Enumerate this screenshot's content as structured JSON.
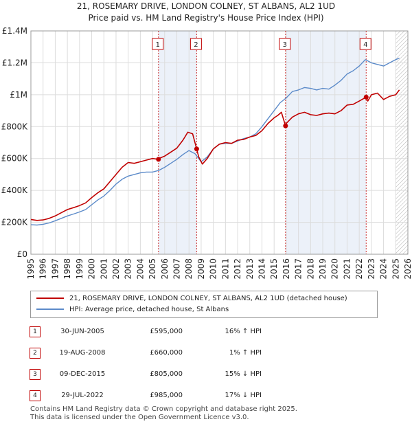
{
  "title_line1": "21, ROSEMARY DRIVE, LONDON COLNEY, ST ALBANS, AL2 1UD",
  "title_line2": "Price paid vs. HM Land Registry's House Price Index (HPI)",
  "colors": {
    "property_line": "#c00000",
    "hpi_line": "#5b8ac9",
    "shade": "#dde6f4",
    "grid": "#dcdcdc"
  },
  "legend": {
    "property_label": "21, ROSEMARY DRIVE, LONDON COLNEY, ST ALBANS, AL2 1UD (detached house)",
    "hpi_label": "HPI: Average price, detached house, St Albans"
  },
  "sales": [
    {
      "num": "1",
      "date": "30-JUN-2005",
      "price": "£595,000",
      "hpi": "16% ↑ HPI"
    },
    {
      "num": "2",
      "date": "19-AUG-2008",
      "price": "£660,000",
      "hpi": "1% ↑ HPI"
    },
    {
      "num": "3",
      "date": "09-DEC-2015",
      "price": "£805,000",
      "hpi": "15% ↓ HPI"
    },
    {
      "num": "4",
      "date": "29-JUL-2022",
      "price": "£985,000",
      "hpi": "17% ↓ HPI"
    }
  ],
  "footer_line1": "Contains HM Land Registry data © Crown copyright and database right 2025.",
  "footer_line2": "This data is licensed under the Open Government Licence v3.0.",
  "chart_data": {
    "type": "line",
    "title": "21, ROSEMARY DRIVE, LONDON COLNEY, ST ALBANS, AL2 1UD",
    "subtitle": "Price paid vs. HM Land Registry's House Price Index (HPI)",
    "xlabel": "",
    "ylabel": "",
    "xlim": [
      1995,
      2026
    ],
    "ylim": [
      0,
      1400000
    ],
    "x_ticks": [
      1995,
      1996,
      1997,
      1998,
      1999,
      2000,
      2001,
      2002,
      2003,
      2004,
      2005,
      2006,
      2007,
      2008,
      2009,
      2010,
      2011,
      2012,
      2013,
      2014,
      2015,
      2016,
      2017,
      2018,
      2019,
      2020,
      2021,
      2022,
      2023,
      2024,
      2025,
      2026
    ],
    "y_ticks": [
      {
        "value": 0,
        "label": "£0"
      },
      {
        "value": 200000,
        "label": "£200K"
      },
      {
        "value": 400000,
        "label": "£400K"
      },
      {
        "value": 600000,
        "label": "£600K"
      },
      {
        "value": 800000,
        "label": "£800K"
      },
      {
        "value": 1000000,
        "label": "£1M"
      },
      {
        "value": 1200000,
        "label": "£1.2M"
      },
      {
        "value": 1400000,
        "label": "£1.4M"
      }
    ],
    "grid": true,
    "forecast_from": 2025.0,
    "series": [
      {
        "name": "21, ROSEMARY DRIVE, LONDON COLNEY, ST ALBANS, AL2 1UD (detached house)",
        "x": [
          1995,
          1995.5,
          1996,
          1996.5,
          1997,
          1997.5,
          1998,
          1998.5,
          1999,
          1999.5,
          2000,
          2000.5,
          2001,
          2001.5,
          2002,
          2002.5,
          2003,
          2003.5,
          2004,
          2004.5,
          2005,
          2005.49,
          2005.5,
          2006,
          2006.5,
          2007,
          2007.5,
          2007.9,
          2008.3,
          2008.63,
          2008.8,
          2009.1,
          2009.5,
          2010,
          2010.5,
          2011,
          2011.5,
          2012,
          2012.5,
          2013,
          2013.5,
          2014,
          2014.5,
          2015,
          2015.3,
          2015.6,
          2015.94,
          2016,
          2016.5,
          2017,
          2017.5,
          2018,
          2018.5,
          2019,
          2019.5,
          2020,
          2020.5,
          2021,
          2021.5,
          2022,
          2022.57,
          2022.7,
          2023,
          2023.5,
          2024,
          2024.5,
          2025,
          2025.3
        ],
        "y": [
          218000,
          212000,
          215000,
          225000,
          240000,
          260000,
          280000,
          292000,
          305000,
          322000,
          355000,
          385000,
          410000,
          455000,
          500000,
          545000,
          575000,
          570000,
          580000,
          590000,
          600000,
          595000,
          600000,
          615000,
          640000,
          665000,
          715000,
          765000,
          755000,
          660000,
          610000,
          565000,
          600000,
          660000,
          690000,
          700000,
          695000,
          715000,
          720000,
          735000,
          745000,
          775000,
          820000,
          855000,
          870000,
          890000,
          805000,
          820000,
          860000,
          880000,
          890000,
          875000,
          870000,
          880000,
          885000,
          880000,
          900000,
          935000,
          940000,
          960000,
          985000,
          960000,
          1000000,
          1010000,
          970000,
          990000,
          1000000,
          1030000
        ]
      },
      {
        "name": "HPI: Average price, detached house, St Albans",
        "x": [
          1995,
          1995.5,
          1996,
          1996.5,
          1997,
          1997.5,
          1998,
          1998.5,
          1999,
          1999.5,
          2000,
          2000.5,
          2001,
          2001.5,
          2002,
          2002.5,
          2003,
          2003.5,
          2004,
          2004.5,
          2005,
          2005.5,
          2006,
          2006.5,
          2007,
          2007.5,
          2008,
          2008.5,
          2009,
          2009.5,
          2010,
          2010.5,
          2011,
          2011.5,
          2012,
          2012.5,
          2013,
          2013.5,
          2014,
          2014.5,
          2015,
          2015.5,
          2016,
          2016.5,
          2017,
          2017.5,
          2018,
          2018.5,
          2019,
          2019.5,
          2020,
          2020.5,
          2021,
          2021.5,
          2022,
          2022.5,
          2023,
          2023.5,
          2024,
          2024.5,
          2025,
          2025.3
        ],
        "y": [
          185000,
          183000,
          188000,
          196000,
          210000,
          225000,
          240000,
          252000,
          265000,
          280000,
          310000,
          340000,
          365000,
          400000,
          440000,
          470000,
          490000,
          500000,
          510000,
          515000,
          515000,
          525000,
          545000,
          570000,
          595000,
          625000,
          650000,
          630000,
          580000,
          610000,
          660000,
          690000,
          695000,
          695000,
          710000,
          725000,
          735000,
          755000,
          800000,
          850000,
          900000,
          950000,
          980000,
          1020000,
          1030000,
          1045000,
          1040000,
          1030000,
          1040000,
          1035000,
          1060000,
          1090000,
          1130000,
          1150000,
          1180000,
          1220000,
          1200000,
          1190000,
          1180000,
          1200000,
          1220000,
          1230000
        ]
      }
    ],
    "annotations": [
      {
        "label": "1",
        "x": 2005.49,
        "y": 595000
      },
      {
        "label": "2",
        "x": 2008.63,
        "y": 660000
      },
      {
        "label": "3",
        "x": 2015.94,
        "y": 805000
      },
      {
        "label": "4",
        "x": 2022.57,
        "y": 985000
      }
    ],
    "shaded_ranges": [
      [
        2005.49,
        2008.63
      ],
      [
        2015.94,
        2022.57
      ]
    ]
  }
}
